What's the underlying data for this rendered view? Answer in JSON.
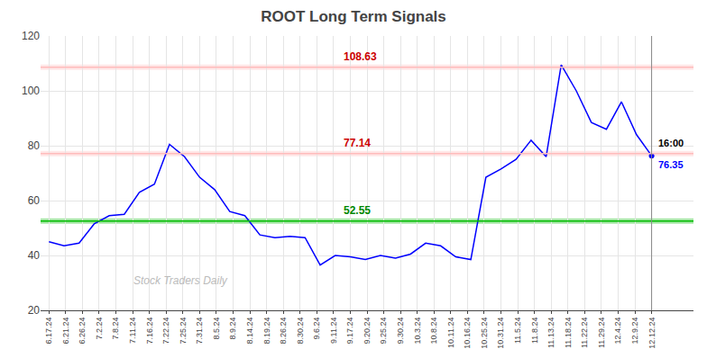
{
  "chart_data": {
    "type": "line",
    "title": "ROOT Long Term Signals",
    "color": "#0000ff",
    "x": [
      0,
      0.9,
      1.8,
      2.7,
      3.6,
      4.5,
      5.4,
      6.3,
      7.2,
      8.1,
      9,
      9.9,
      10.8,
      11.7,
      12.6,
      13.5,
      14.4,
      15.3,
      16.2,
      17.1,
      18,
      18.9,
      19.8,
      20.7,
      21.6,
      22.5,
      23.4,
      24.3,
      25.2,
      26.1,
      27,
      27.9,
      28.8,
      29.7,
      30.6,
      31.5,
      32.4,
      33.3,
      34.2,
      35.1,
      36
    ],
    "values": [
      45.0,
      43.5,
      44.5,
      51.5,
      54.5,
      55.0,
      63.0,
      66.0,
      80.5,
      76.0,
      68.5,
      64.0,
      56.0,
      54.5,
      47.5,
      46.5,
      47.0,
      46.5,
      36.5,
      40.0,
      39.5,
      38.5,
      40.0,
      39.0,
      40.5,
      44.5,
      43.5,
      39.5,
      38.5,
      68.5,
      71.5,
      75.0,
      82.0,
      76.0,
      109.5,
      100.0,
      88.5,
      86.0,
      96.0,
      84.0,
      76.35
    ],
    "xlim": [
      -0.5,
      38.5
    ],
    "xticks": [
      {
        "value": 0,
        "label": "6.17.24"
      },
      {
        "value": 1,
        "label": "6.21.24"
      },
      {
        "value": 2,
        "label": "6.26.24"
      },
      {
        "value": 3,
        "label": "7.2.24"
      },
      {
        "value": 4,
        "label": "7.8.24"
      },
      {
        "value": 5,
        "label": "7.11.24"
      },
      {
        "value": 6,
        "label": "7.16.24"
      },
      {
        "value": 7,
        "label": "7.22.24"
      },
      {
        "value": 8,
        "label": "7.25.24"
      },
      {
        "value": 9,
        "label": "7.31.24"
      },
      {
        "value": 10,
        "label": "8.5.24"
      },
      {
        "value": 11,
        "label": "8.9.24"
      },
      {
        "value": 12,
        "label": "8.14.24"
      },
      {
        "value": 13,
        "label": "8.19.24"
      },
      {
        "value": 14,
        "label": "8.26.24"
      },
      {
        "value": 15,
        "label": "8.30.24"
      },
      {
        "value": 16,
        "label": "9.6.24"
      },
      {
        "value": 17,
        "label": "9.11.24"
      },
      {
        "value": 18,
        "label": "9.17.24"
      },
      {
        "value": 19,
        "label": "9.20.24"
      },
      {
        "value": 20,
        "label": "9.25.24"
      },
      {
        "value": 21,
        "label": "9.30.24"
      },
      {
        "value": 22,
        "label": "10.3.24"
      },
      {
        "value": 23,
        "label": "10.8.24"
      },
      {
        "value": 24,
        "label": "10.11.24"
      },
      {
        "value": 25,
        "label": "10.16.24"
      },
      {
        "value": 26,
        "label": "10.25.24"
      },
      {
        "value": 27,
        "label": "10.31.24"
      },
      {
        "value": 28,
        "label": "11.5.24"
      },
      {
        "value": 29,
        "label": "11.8.24"
      },
      {
        "value": 30,
        "label": "11.13.24"
      },
      {
        "value": 31,
        "label": "11.18.24"
      },
      {
        "value": 32,
        "label": "11.22.24"
      },
      {
        "value": 33,
        "label": "11.29.24"
      },
      {
        "value": 34,
        "label": "12.4.24"
      },
      {
        "value": 35,
        "label": "12.9.24"
      },
      {
        "value": 36,
        "label": "12.12.24"
      }
    ],
    "ylim": [
      20,
      120
    ],
    "yticks": [
      20,
      40,
      60,
      80,
      100,
      120
    ],
    "grid": true,
    "hlines": [
      {
        "value": 108.63,
        "label": "108.63",
        "color": "#ffbbbb",
        "label_color": "#cc0000"
      },
      {
        "value": 77.14,
        "label": "77.14",
        "color": "#ffbbbb",
        "label_color": "#cc0000"
      },
      {
        "value": 52.55,
        "label": "52.55",
        "color": "#00bb00",
        "label_color": "#008800"
      }
    ],
    "watermark": "Stock Traders Daily",
    "watermark_color": "#bbbbbb",
    "last_point": {
      "x": 36,
      "value": 76.35,
      "time_label": "16:00",
      "value_label": "76.35",
      "value_label_color": "#0000ff"
    }
  }
}
